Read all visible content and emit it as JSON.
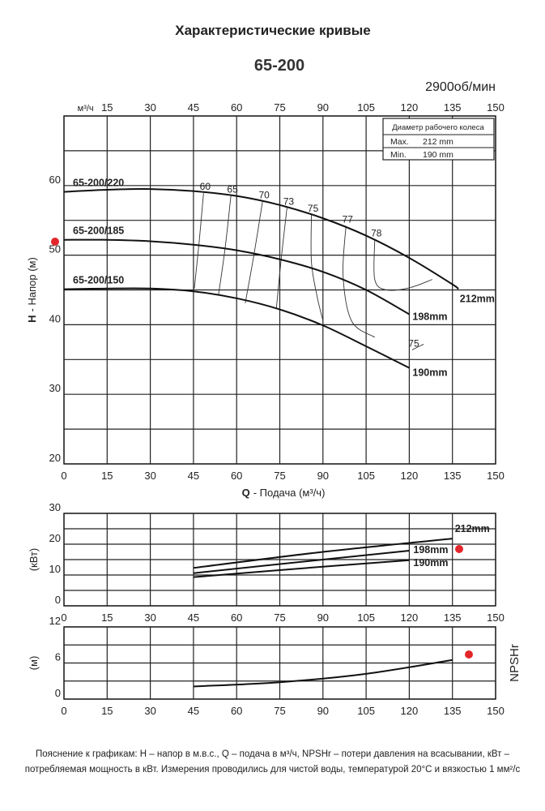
{
  "title": "Характеристические кривые",
  "model": "65-200",
  "speed": "2900об/мин",
  "legend_box": {
    "header": "Диаметр рабочего колеса",
    "rows": [
      [
        "Max.",
        "212 mm"
      ],
      [
        "Min.",
        "190 mm"
      ]
    ]
  },
  "footnote": "Пояснение к графикам: H – напор в м.в.с., Q – подача в м³/ч, NPSHr – потери давления на всасывании, кВт – потребляемая мощность в кВт. Измерения проводились для чистой воды, температурой 20°C и вязкостью 1 мм²/с",
  "chart_data": [
    {
      "type": "line",
      "top_axis_unit": "м³/ч",
      "ylabel": {
        "symbol": "H",
        "text": "- Напор (м)"
      },
      "xlabel": {
        "symbol": "Q",
        "text": "- Подача (м³/ч)"
      },
      "xlim": [
        0,
        150
      ],
      "xticks": [
        0,
        15,
        30,
        45,
        60,
        75,
        90,
        105,
        120,
        135,
        150
      ],
      "ylim": [
        20,
        70
      ],
      "yticks": [
        20,
        30,
        40,
        50,
        60
      ],
      "ygrid": [
        20,
        25,
        30,
        35,
        40,
        45,
        50,
        55,
        60,
        65,
        70
      ],
      "series": [
        {
          "name": "65-200/220",
          "label": "212mm",
          "color": "#111111",
          "x": [
            0,
            15,
            30,
            45,
            60,
            75,
            90,
            105,
            120,
            135,
            137
          ],
          "values": [
            59.1,
            59.4,
            59.5,
            59.2,
            58.5,
            57.2,
            55.3,
            52.8,
            49.6,
            45.8,
            45.1
          ]
        },
        {
          "name": "65-200/185",
          "label": "198mm",
          "color": "#111111",
          "x": [
            0,
            15,
            30,
            45,
            60,
            75,
            90,
            105,
            120
          ],
          "values": [
            52.2,
            52.2,
            52.0,
            51.5,
            50.7,
            49.4,
            47.6,
            45.0,
            41.5
          ]
        },
        {
          "name": "65-200/150",
          "label": "190mm",
          "color": "#111111",
          "x": [
            0,
            15,
            30,
            45,
            60,
            75,
            90,
            105,
            120
          ],
          "values": [
            45.1,
            45.2,
            45.2,
            44.8,
            43.8,
            42.2,
            39.9,
            36.9,
            33.8
          ]
        }
      ],
      "efficiency": [
        {
          "label": "60",
          "x": [
            48.5,
            47,
            45.3
          ],
          "values": [
            58.9,
            52,
            45.2
          ]
        },
        {
          "label": "65",
          "x": [
            58,
            56,
            53.7
          ],
          "values": [
            58.5,
            51,
            44.3
          ]
        },
        {
          "label": "70",
          "x": [
            69,
            66,
            63
          ],
          "values": [
            57.7,
            50,
            43.1
          ]
        },
        {
          "label": "73",
          "x": [
            77.5,
            75.5,
            73.8
          ],
          "values": [
            56.8,
            49.5,
            42.3
          ]
        },
        {
          "label": "75",
          "x": [
            86,
            86,
            88,
            90
          ],
          "values": [
            55.8,
            49,
            44,
            40.6
          ]
        },
        {
          "label": "77",
          "x": [
            98,
            97,
            100,
            108
          ],
          "values": [
            54.2,
            47,
            40.5,
            38.2
          ]
        },
        {
          "label": "78",
          "x": [
            108,
            108,
            112,
            120,
            128
          ],
          "values": [
            52.2,
            46.5,
            45,
            45.3,
            46.5
          ]
        },
        {
          "label": "75",
          "x": [
            121,
            125
          ],
          "values": [
            36.4,
            37.2
          ]
        }
      ]
    },
    {
      "type": "line",
      "ylabel": "(кВт)",
      "xlim": [
        0,
        150
      ],
      "xticks": [
        0,
        15,
        30,
        45,
        60,
        75,
        90,
        105,
        120,
        135,
        150
      ],
      "ylim": [
        0,
        30
      ],
      "yticks": [
        0,
        10,
        20,
        30
      ],
      "ygrid": [
        0,
        5,
        10,
        15,
        20,
        25,
        30
      ],
      "series": [
        {
          "name": "212mm",
          "color": "#111111",
          "x": [
            45,
            90,
            135
          ],
          "values": [
            12.3,
            17.5,
            21.8
          ]
        },
        {
          "name": "198mm",
          "color": "#111111",
          "x": [
            45,
            90,
            120
          ],
          "values": [
            10.6,
            15,
            17.9
          ]
        },
        {
          "name": "190mm",
          "color": "#111111",
          "x": [
            45,
            90,
            120
          ],
          "values": [
            9.3,
            12.7,
            14.8
          ]
        }
      ]
    },
    {
      "type": "line",
      "ylabel": "(м)",
      "y2label": "NPSHr",
      "xlim": [
        0,
        150
      ],
      "xticks": [
        0,
        15,
        30,
        45,
        60,
        75,
        90,
        105,
        120,
        135,
        150
      ],
      "ylim": [
        0,
        12
      ],
      "yticks": [
        0,
        6,
        12
      ],
      "ygrid": [
        0,
        3,
        6,
        9,
        12
      ],
      "series": [
        {
          "name": "NPSHr",
          "color": "#111111",
          "x": [
            45,
            75,
            105,
            135
          ],
          "values": [
            2.1,
            2.8,
            4.2,
            6.5
          ]
        }
      ]
    }
  ]
}
